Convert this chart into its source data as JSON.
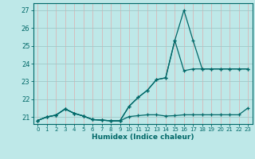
{
  "xlabel": "Humidex (Indice chaleur)",
  "xlim": [
    -0.5,
    23.5
  ],
  "ylim": [
    20.6,
    27.4
  ],
  "yticks": [
    21,
    22,
    23,
    24,
    25,
    26,
    27
  ],
  "xticks": [
    0,
    1,
    2,
    3,
    4,
    5,
    6,
    7,
    8,
    9,
    10,
    11,
    12,
    13,
    14,
    15,
    16,
    17,
    18,
    19,
    20,
    21,
    22,
    23
  ],
  "background_color": "#bee8e8",
  "line_color": "#006868",
  "grid_color_h": "#a0c8c8",
  "grid_color_v": "#d8b8b8",
  "lines": [
    {
      "x": [
        0,
        1,
        2,
        3,
        4,
        5,
        6,
        7,
        8,
        9,
        10,
        11,
        12,
        13,
        14,
        15,
        16,
        17,
        18,
        19,
        20,
        21,
        22,
        23
      ],
      "y": [
        20.8,
        21.0,
        21.1,
        21.45,
        21.2,
        21.05,
        20.85,
        20.82,
        20.78,
        20.78,
        21.02,
        21.07,
        21.12,
        21.12,
        21.05,
        21.07,
        21.12,
        21.12,
        21.12,
        21.12,
        21.12,
        21.12,
        21.12,
        21.5
      ]
    },
    {
      "x": [
        0,
        1,
        2,
        3,
        4,
        5,
        6,
        7,
        8,
        9,
        10,
        11,
        12,
        13,
        14,
        15,
        16,
        17,
        18,
        19,
        20,
        21,
        22,
        23
      ],
      "y": [
        20.8,
        21.0,
        21.1,
        21.45,
        21.2,
        21.05,
        20.85,
        20.82,
        20.78,
        20.78,
        21.6,
        22.1,
        22.5,
        23.1,
        23.2,
        25.3,
        23.6,
        23.7,
        23.7,
        23.7,
        23.7,
        23.7,
        23.7,
        23.7
      ]
    },
    {
      "x": [
        0,
        1,
        2,
        3,
        4,
        5,
        6,
        7,
        8,
        9,
        10,
        11,
        12,
        13,
        14,
        15,
        16,
        17,
        18,
        19,
        20,
        21,
        22,
        23
      ],
      "y": [
        20.8,
        21.0,
        21.1,
        21.45,
        21.2,
        21.05,
        20.85,
        20.82,
        20.78,
        20.78,
        21.6,
        22.1,
        22.5,
        23.1,
        23.2,
        25.3,
        27.0,
        25.3,
        23.7,
        23.7,
        23.7,
        23.7,
        23.7,
        23.7
      ]
    }
  ]
}
